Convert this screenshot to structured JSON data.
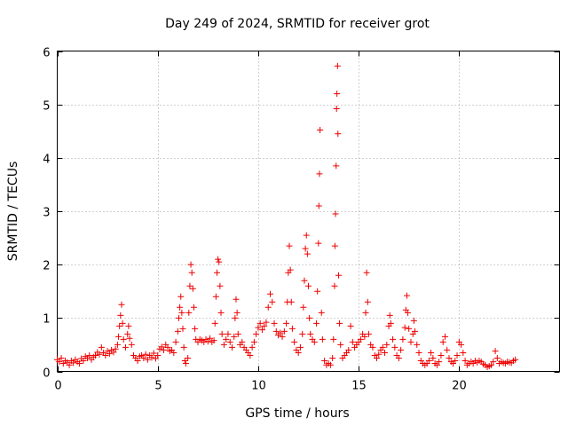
{
  "chart_data": {
    "type": "scatter",
    "title": "Day 249 of 2024, SRMTID for receiver grot",
    "xlabel": "GPS time / hours",
    "ylabel": "SRMTID / TECUs",
    "xlim": [
      0,
      25
    ],
    "ylim": [
      0,
      6
    ],
    "xticks": [
      0,
      5,
      10,
      15,
      20
    ],
    "yticks": [
      0,
      1,
      2,
      3,
      4,
      5,
      6
    ],
    "xtick_labels": [
      "0",
      "5",
      "10",
      "15",
      "20"
    ],
    "ytick_labels": [
      "0",
      "1",
      "2",
      "3",
      "4",
      "5",
      "6"
    ],
    "grid": true,
    "marker": "+",
    "color": "#ee0000",
    "series": [
      {
        "name": "SRMTID",
        "points": [
          [
            0.0,
            0.22
          ],
          [
            0.1,
            0.18
          ],
          [
            0.2,
            0.25
          ],
          [
            0.3,
            0.15
          ],
          [
            0.4,
            0.2
          ],
          [
            0.5,
            0.17
          ],
          [
            0.6,
            0.12
          ],
          [
            0.7,
            0.2
          ],
          [
            0.8,
            0.16
          ],
          [
            0.9,
            0.22
          ],
          [
            1.0,
            0.18
          ],
          [
            1.1,
            0.15
          ],
          [
            1.2,
            0.24
          ],
          [
            1.3,
            0.2
          ],
          [
            1.4,
            0.28
          ],
          [
            1.5,
            0.25
          ],
          [
            1.6,
            0.3
          ],
          [
            1.7,
            0.22
          ],
          [
            1.8,
            0.27
          ],
          [
            1.9,
            0.3
          ],
          [
            2.0,
            0.36
          ],
          [
            2.1,
            0.32
          ],
          [
            2.2,
            0.45
          ],
          [
            2.3,
            0.35
          ],
          [
            2.4,
            0.3
          ],
          [
            2.5,
            0.38
          ],
          [
            2.6,
            0.33
          ],
          [
            2.7,
            0.4
          ],
          [
            2.8,
            0.36
          ],
          [
            2.9,
            0.42
          ],
          [
            3.0,
            0.5
          ],
          [
            3.05,
            0.65
          ],
          [
            3.1,
            0.85
          ],
          [
            3.15,
            1.05
          ],
          [
            3.2,
            1.25
          ],
          [
            3.25,
            0.9
          ],
          [
            3.3,
            0.6
          ],
          [
            3.4,
            0.45
          ],
          [
            3.5,
            0.7
          ],
          [
            3.55,
            0.85
          ],
          [
            3.6,
            0.62
          ],
          [
            3.7,
            0.5
          ],
          [
            3.8,
            0.3
          ],
          [
            3.9,
            0.25
          ],
          [
            4.0,
            0.2
          ],
          [
            4.1,
            0.28
          ],
          [
            4.2,
            0.3
          ],
          [
            4.3,
            0.25
          ],
          [
            4.4,
            0.32
          ],
          [
            4.5,
            0.22
          ],
          [
            4.6,
            0.3
          ],
          [
            4.7,
            0.26
          ],
          [
            4.8,
            0.34
          ],
          [
            4.9,
            0.24
          ],
          [
            5.0,
            0.3
          ],
          [
            5.1,
            0.42
          ],
          [
            5.2,
            0.46
          ],
          [
            5.3,
            0.4
          ],
          [
            5.4,
            0.5
          ],
          [
            5.5,
            0.45
          ],
          [
            5.6,
            0.38
          ],
          [
            5.7,
            0.4
          ],
          [
            5.8,
            0.35
          ],
          [
            5.9,
            0.55
          ],
          [
            6.0,
            0.75
          ],
          [
            6.05,
            1.0
          ],
          [
            6.1,
            1.2
          ],
          [
            6.15,
            1.4
          ],
          [
            6.2,
            1.1
          ],
          [
            6.25,
            0.8
          ],
          [
            6.3,
            0.45
          ],
          [
            6.35,
            0.2
          ],
          [
            6.4,
            0.15
          ],
          [
            6.5,
            0.25
          ],
          [
            6.55,
            1.1
          ],
          [
            6.6,
            1.6
          ],
          [
            6.65,
            2.0
          ],
          [
            6.7,
            1.85
          ],
          [
            6.75,
            1.55
          ],
          [
            6.8,
            1.2
          ],
          [
            6.85,
            0.8
          ],
          [
            6.9,
            0.6
          ],
          [
            7.0,
            0.55
          ],
          [
            7.1,
            0.6
          ],
          [
            7.2,
            0.58
          ],
          [
            7.3,
            0.55
          ],
          [
            7.4,
            0.6
          ],
          [
            7.5,
            0.56
          ],
          [
            7.6,
            0.62
          ],
          [
            7.7,
            0.55
          ],
          [
            7.8,
            0.58
          ],
          [
            7.85,
            0.9
          ],
          [
            7.9,
            1.4
          ],
          [
            7.95,
            1.85
          ],
          [
            8.0,
            2.1
          ],
          [
            8.05,
            2.05
          ],
          [
            8.1,
            1.6
          ],
          [
            8.15,
            1.1
          ],
          [
            8.2,
            0.7
          ],
          [
            8.3,
            0.5
          ],
          [
            8.4,
            0.6
          ],
          [
            8.5,
            0.7
          ],
          [
            8.6,
            0.55
          ],
          [
            8.7,
            0.45
          ],
          [
            8.8,
            0.65
          ],
          [
            8.85,
            1.0
          ],
          [
            8.9,
            1.35
          ],
          [
            8.95,
            1.1
          ],
          [
            9.0,
            0.7
          ],
          [
            9.1,
            0.5
          ],
          [
            9.2,
            0.55
          ],
          [
            9.3,
            0.45
          ],
          [
            9.4,
            0.4
          ],
          [
            9.5,
            0.35
          ],
          [
            9.6,
            0.3
          ],
          [
            9.7,
            0.45
          ],
          [
            9.8,
            0.55
          ],
          [
            9.9,
            0.7
          ],
          [
            10.0,
            0.82
          ],
          [
            10.1,
            0.9
          ],
          [
            10.2,
            0.78
          ],
          [
            10.3,
            0.85
          ],
          [
            10.4,
            0.92
          ],
          [
            10.5,
            1.2
          ],
          [
            10.6,
            1.45
          ],
          [
            10.7,
            1.3
          ],
          [
            10.8,
            0.9
          ],
          [
            10.9,
            0.75
          ],
          [
            11.0,
            0.68
          ],
          [
            11.1,
            0.72
          ],
          [
            11.2,
            0.65
          ],
          [
            11.3,
            0.75
          ],
          [
            11.4,
            0.9
          ],
          [
            11.45,
            1.3
          ],
          [
            11.5,
            1.85
          ],
          [
            11.55,
            2.35
          ],
          [
            11.6,
            1.9
          ],
          [
            11.65,
            1.3
          ],
          [
            11.7,
            0.8
          ],
          [
            11.8,
            0.55
          ],
          [
            11.9,
            0.4
          ],
          [
            12.0,
            0.35
          ],
          [
            12.1,
            0.45
          ],
          [
            12.2,
            0.7
          ],
          [
            12.25,
            1.2
          ],
          [
            12.3,
            1.7
          ],
          [
            12.35,
            2.3
          ],
          [
            12.4,
            2.55
          ],
          [
            12.45,
            2.2
          ],
          [
            12.5,
            1.6
          ],
          [
            12.55,
            1.0
          ],
          [
            12.6,
            0.7
          ],
          [
            12.7,
            0.6
          ],
          [
            12.8,
            0.55
          ],
          [
            12.9,
            0.9
          ],
          [
            12.95,
            1.5
          ],
          [
            13.0,
            2.4
          ],
          [
            13.02,
            3.1
          ],
          [
            13.05,
            3.7
          ],
          [
            13.08,
            4.52
          ],
          [
            13.15,
            1.1
          ],
          [
            13.2,
            0.6
          ],
          [
            13.3,
            0.2
          ],
          [
            13.4,
            0.12
          ],
          [
            13.5,
            0.15
          ],
          [
            13.6,
            0.12
          ],
          [
            13.7,
            0.25
          ],
          [
            13.75,
            0.6
          ],
          [
            13.8,
            1.6
          ],
          [
            13.82,
            2.35
          ],
          [
            13.85,
            2.95
          ],
          [
            13.88,
            3.85
          ],
          [
            13.9,
            4.92
          ],
          [
            13.92,
            5.2
          ],
          [
            13.95,
            5.72
          ],
          [
            13.97,
            4.45
          ],
          [
            14.0,
            1.8
          ],
          [
            14.05,
            0.9
          ],
          [
            14.1,
            0.5
          ],
          [
            14.2,
            0.25
          ],
          [
            14.3,
            0.3
          ],
          [
            14.4,
            0.35
          ],
          [
            14.5,
            0.4
          ],
          [
            14.6,
            0.85
          ],
          [
            14.7,
            0.55
          ],
          [
            14.8,
            0.45
          ],
          [
            14.9,
            0.5
          ],
          [
            15.0,
            0.55
          ],
          [
            15.1,
            0.6
          ],
          [
            15.2,
            0.7
          ],
          [
            15.3,
            0.65
          ],
          [
            15.35,
            1.1
          ],
          [
            15.4,
            1.85
          ],
          [
            15.45,
            1.3
          ],
          [
            15.5,
            0.7
          ],
          [
            15.6,
            0.5
          ],
          [
            15.7,
            0.45
          ],
          [
            15.8,
            0.3
          ],
          [
            15.9,
            0.25
          ],
          [
            16.0,
            0.32
          ],
          [
            16.1,
            0.4
          ],
          [
            16.2,
            0.45
          ],
          [
            16.3,
            0.35
          ],
          [
            16.4,
            0.5
          ],
          [
            16.5,
            0.85
          ],
          [
            16.55,
            1.05
          ],
          [
            16.6,
            0.9
          ],
          [
            16.7,
            0.6
          ],
          [
            16.8,
            0.45
          ],
          [
            16.9,
            0.3
          ],
          [
            17.0,
            0.25
          ],
          [
            17.1,
            0.4
          ],
          [
            17.2,
            0.6
          ],
          [
            17.3,
            0.82
          ],
          [
            17.35,
            1.15
          ],
          [
            17.4,
            1.42
          ],
          [
            17.45,
            1.1
          ],
          [
            17.5,
            0.8
          ],
          [
            17.6,
            0.55
          ],
          [
            17.7,
            0.7
          ],
          [
            17.75,
            0.95
          ],
          [
            17.8,
            0.75
          ],
          [
            17.9,
            0.5
          ],
          [
            18.0,
            0.35
          ],
          [
            18.1,
            0.2
          ],
          [
            18.2,
            0.15
          ],
          [
            18.3,
            0.12
          ],
          [
            18.4,
            0.15
          ],
          [
            18.5,
            0.2
          ],
          [
            18.6,
            0.35
          ],
          [
            18.7,
            0.25
          ],
          [
            18.8,
            0.15
          ],
          [
            18.9,
            0.12
          ],
          [
            19.0,
            0.18
          ],
          [
            19.1,
            0.3
          ],
          [
            19.2,
            0.55
          ],
          [
            19.3,
            0.65
          ],
          [
            19.4,
            0.4
          ],
          [
            19.5,
            0.25
          ],
          [
            19.6,
            0.18
          ],
          [
            19.7,
            0.15
          ],
          [
            19.8,
            0.2
          ],
          [
            19.9,
            0.3
          ],
          [
            20.0,
            0.55
          ],
          [
            20.1,
            0.5
          ],
          [
            20.2,
            0.35
          ],
          [
            20.3,
            0.2
          ],
          [
            20.4,
            0.12
          ],
          [
            20.5,
            0.15
          ],
          [
            20.6,
            0.18
          ],
          [
            20.7,
            0.15
          ],
          [
            20.8,
            0.2
          ],
          [
            20.9,
            0.17
          ],
          [
            21.0,
            0.2
          ],
          [
            21.1,
            0.18
          ],
          [
            21.2,
            0.14
          ],
          [
            21.3,
            0.12
          ],
          [
            21.4,
            0.08
          ],
          [
            21.5,
            0.1
          ],
          [
            21.6,
            0.12
          ],
          [
            21.7,
            0.18
          ],
          [
            21.8,
            0.38
          ],
          [
            21.9,
            0.25
          ],
          [
            22.0,
            0.15
          ],
          [
            22.1,
            0.18
          ],
          [
            22.2,
            0.16
          ],
          [
            22.3,
            0.15
          ],
          [
            22.4,
            0.18
          ],
          [
            22.5,
            0.17
          ],
          [
            22.6,
            0.16
          ],
          [
            22.7,
            0.2
          ],
          [
            22.8,
            0.22
          ]
        ]
      }
    ]
  }
}
